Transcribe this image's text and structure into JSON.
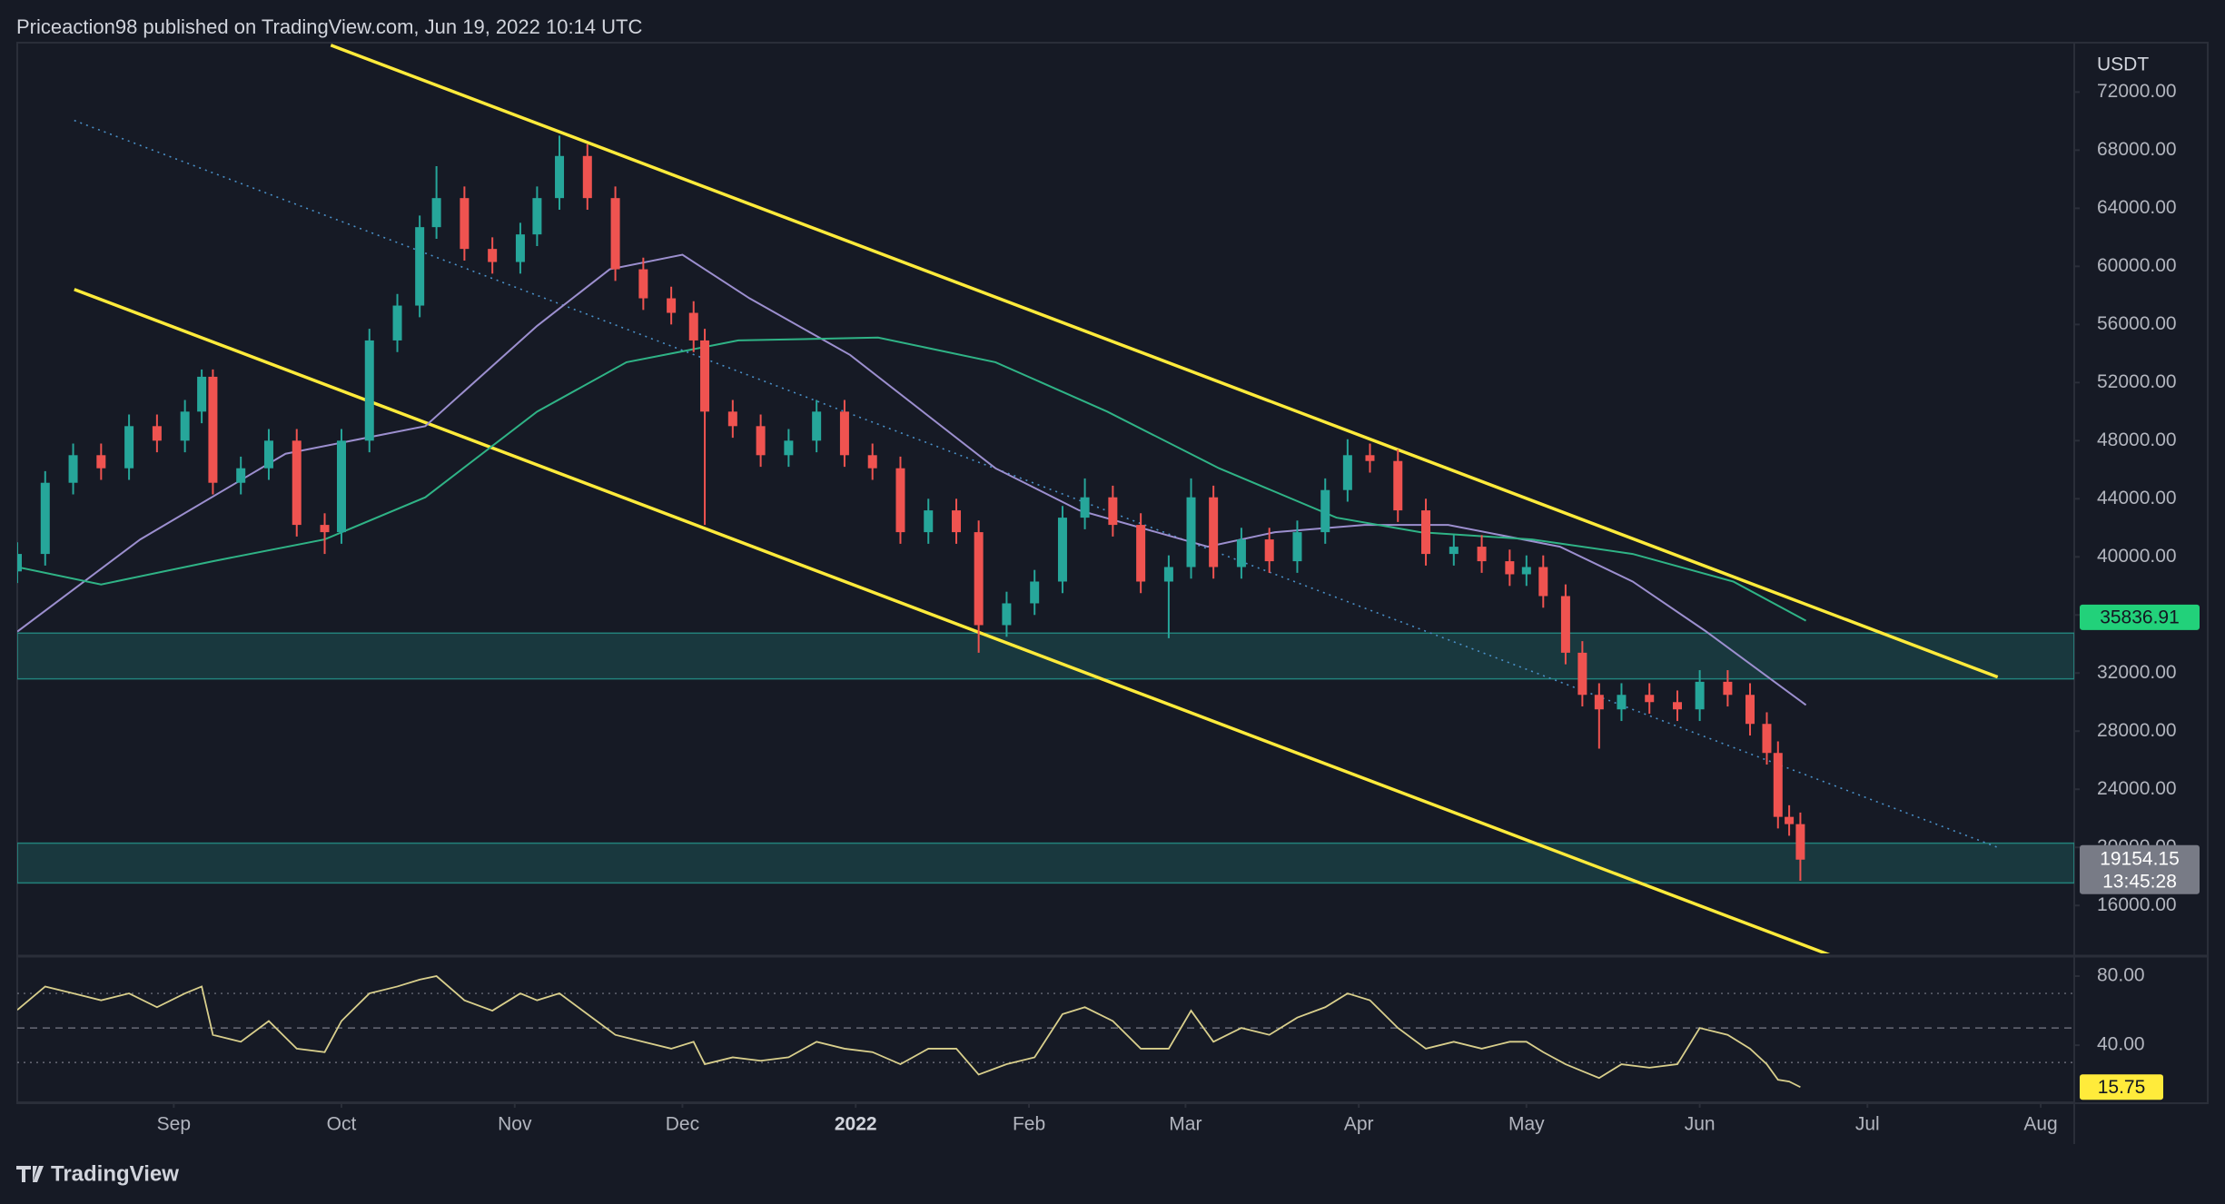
{
  "header": {
    "publisher": "Priceaction98 published on TradingView.com, Jun 19, 2022 10:14 UTC",
    "logo": "TradingView"
  },
  "chart_data": [
    {
      "type": "candlestick",
      "currency": "USDT",
      "up_color": "#26a69a",
      "down_color": "#ef5350",
      "x": [
        0,
        5,
        10,
        15,
        20,
        25,
        30,
        33,
        35,
        40,
        45,
        50,
        55,
        58,
        63,
        68,
        72,
        75,
        80,
        85,
        90,
        93,
        97,
        102,
        107,
        112,
        117,
        121,
        123,
        128,
        133,
        138,
        143,
        148,
        153,
        158,
        163,
        168,
        172,
        177,
        182,
        187,
        191,
        196,
        201,
        206,
        210,
        214,
        219,
        224,
        229,
        234,
        238,
        242,
        247,
        252,
        257,
        262,
        267,
        270,
        273,
        277,
        280,
        283,
        287,
        292,
        297,
        301,
        306,
        310,
        313,
        315,
        317,
        319
      ],
      "open": [
        39000,
        40200,
        45100,
        47000,
        46100,
        49000,
        48000,
        50000,
        52400,
        45100,
        46100,
        48000,
        42200,
        41700,
        48000,
        54900,
        57300,
        62700,
        64700,
        61200,
        60300,
        62200,
        64700,
        67600,
        64700,
        59800,
        57800,
        56800,
        54900,
        50000,
        49000,
        47000,
        48000,
        50000,
        47000,
        46100,
        41700,
        43200,
        41700,
        35300,
        36800,
        38300,
        42700,
        44100,
        42200,
        38300,
        39300,
        44100,
        39300,
        41200,
        39700,
        41700,
        44600,
        47000,
        46600,
        43200,
        40200,
        40700,
        39700,
        38800,
        39300,
        37300,
        33400,
        30500,
        29500,
        30500,
        30000,
        29500,
        31400,
        30500,
        28500,
        26500,
        22100,
        21600
      ],
      "high": [
        41000,
        45900,
        47800,
        47800,
        49800,
        49800,
        50800,
        52900,
        52900,
        46900,
        48800,
        48800,
        43000,
        48800,
        55700,
        58100,
        63500,
        66900,
        65500,
        62000,
        63000,
        65500,
        69000,
        68400,
        65500,
        60600,
        58600,
        57600,
        55700,
        50800,
        49800,
        48800,
        50800,
        50800,
        47800,
        46900,
        44000,
        44000,
        42500,
        37600,
        39100,
        43500,
        45400,
        44900,
        43000,
        40100,
        45400,
        44900,
        42000,
        42000,
        42500,
        45400,
        48100,
        47800,
        47400,
        44000,
        41500,
        41500,
        40500,
        40100,
        40100,
        38100,
        34200,
        31300,
        31300,
        31300,
        30800,
        32200,
        32200,
        31300,
        29300,
        27300,
        22900,
        22400
      ],
      "low": [
        38200,
        39400,
        44300,
        45300,
        45300,
        47200,
        47200,
        49200,
        44300,
        44300,
        45300,
        41400,
        40200,
        40900,
        47200,
        54100,
        56500,
        61900,
        60400,
        59500,
        59500,
        61400,
        63900,
        63900,
        59000,
        57000,
        56000,
        54100,
        42200,
        48200,
        46200,
        46200,
        47200,
        46200,
        45300,
        40900,
        40900,
        40900,
        33400,
        34500,
        36000,
        37500,
        41900,
        41400,
        37500,
        34400,
        38500,
        38500,
        38500,
        38900,
        38900,
        40900,
        43800,
        45800,
        42400,
        39400,
        39400,
        38900,
        38000,
        38000,
        36500,
        32600,
        29700,
        26800,
        28700,
        29200,
        28700,
        28700,
        29700,
        27700,
        25700,
        21300,
        20800,
        17700
      ],
      "close": [
        40200,
        45100,
        47000,
        46100,
        49000,
        48000,
        50000,
        52400,
        45100,
        46100,
        48000,
        42200,
        41700,
        48000,
        54900,
        57300,
        62700,
        64700,
        61200,
        60300,
        62200,
        64700,
        67600,
        64700,
        59800,
        57800,
        56800,
        54900,
        50000,
        49000,
        47000,
        48000,
        50000,
        47000,
        46100,
        41700,
        43200,
        41700,
        35300,
        36800,
        38300,
        42700,
        44100,
        42200,
        38300,
        39300,
        44100,
        39300,
        41200,
        39700,
        41700,
        44600,
        47000,
        46600,
        43200,
        40200,
        40700,
        39700,
        38800,
        39300,
        37300,
        33400,
        30500,
        29500,
        30500,
        30000,
        29500,
        31400,
        30500,
        28500,
        26500,
        22100,
        21600,
        19154.15
      ],
      "xlim": [
        0,
        368
      ],
      "ylim": [
        12700,
        75400
      ],
      "yticks": [
        {
          "value": 16000,
          "label": "16000.00"
        },
        {
          "value": 20000,
          "label": "20000.00"
        },
        {
          "value": 24000,
          "label": "24000.00"
        },
        {
          "value": 28000,
          "label": "28000.00"
        },
        {
          "value": 32000,
          "label": "32000.00"
        },
        {
          "value": 36000,
          "label": "36000.00"
        },
        {
          "value": 40000,
          "label": "40000.00"
        },
        {
          "value": 44000,
          "label": "44000.00"
        },
        {
          "value": 48000,
          "label": "48000.00"
        },
        {
          "value": 52000,
          "label": "52000.00"
        },
        {
          "value": 56000,
          "label": "56000.00"
        },
        {
          "value": 60000,
          "label": "60000.00"
        },
        {
          "value": 64000,
          "label": "64000.00"
        },
        {
          "value": 68000,
          "label": "68000.00"
        },
        {
          "value": 72000,
          "label": "72000.00"
        }
      ],
      "series": [
        {
          "color": "#9c8fcf",
          "x": [
            0,
            22,
            48,
            73,
            93,
            106,
            119,
            131,
            149,
            175,
            190,
            213,
            225,
            241,
            256,
            276,
            289,
            302,
            320
          ],
          "values": [
            34850,
            41200,
            47100,
            49000,
            55900,
            59800,
            60800,
            57800,
            53900,
            46100,
            43200,
            40700,
            41700,
            42200,
            42200,
            40700,
            38300,
            34900,
            29800
          ]
        },
        {
          "color": "#2fb386",
          "x": [
            0,
            15,
            35,
            55,
            73,
            93,
            109,
            129,
            154,
            175,
            195,
            215,
            236,
            251,
            271,
            289,
            307,
            320
          ],
          "values": [
            39300,
            38100,
            39700,
            41200,
            44100,
            50000,
            53400,
            54900,
            55100,
            53400,
            50000,
            46100,
            42700,
            41700,
            41200,
            40200,
            38300,
            35600
          ]
        }
      ],
      "trendlines": [
        {
          "color": "#ffeb3b",
          "style": "solid",
          "x": [
            56.1,
            354.3
          ],
          "values": [
            75226,
            31727
          ]
        },
        {
          "color": "#ffeb3b",
          "style": "solid",
          "x": [
            10.2,
            325.1
          ],
          "values": [
            58413,
            12470
          ]
        },
        {
          "color": "#4a90c8",
          "style": "dotted",
          "x": [
            10.2,
            354.3
          ],
          "values": [
            70045,
            20000
          ]
        }
      ],
      "zones": [
        {
          "from": 31600,
          "to": 34750,
          "color": "#26a69a"
        },
        {
          "from": 17550,
          "to": 20290,
          "color": "#26a69a"
        }
      ],
      "price_marks": [
        {
          "value": 35836.91,
          "label": "35836.91",
          "color": "#22d17a"
        }
      ],
      "last_price": {
        "value": 19154.15,
        "label": "19154.15",
        "countdown": "13:45:28",
        "color": "#787b86"
      }
    },
    {
      "type": "line",
      "color": "#d9cf8c",
      "x": [
        0,
        5,
        10,
        15,
        20,
        25,
        30,
        33,
        35,
        40,
        45,
        50,
        55,
        58,
        63,
        68,
        72,
        75,
        80,
        85,
        90,
        93,
        97,
        102,
        107,
        112,
        117,
        121,
        123,
        128,
        133,
        138,
        143,
        148,
        153,
        158,
        163,
        168,
        172,
        177,
        182,
        187,
        191,
        196,
        201,
        206,
        210,
        214,
        219,
        224,
        229,
        234,
        238,
        242,
        247,
        252,
        257,
        262,
        267,
        270,
        273,
        277,
        280,
        283,
        287,
        292,
        297,
        301,
        306,
        310,
        313,
        315,
        317,
        319
      ],
      "values": [
        60.4,
        74,
        70,
        66,
        70,
        62,
        70,
        74,
        46,
        42,
        54,
        38,
        36,
        54,
        70,
        74,
        78,
        80,
        66,
        60,
        70,
        66,
        70,
        58,
        46,
        42,
        38,
        42,
        29,
        33,
        31,
        33,
        42,
        38,
        36,
        29,
        38,
        38,
        23,
        29,
        33,
        58,
        62,
        54,
        38,
        38,
        60,
        42,
        50,
        46,
        56,
        62,
        70,
        66,
        50,
        38,
        42,
        38,
        42,
        42,
        36,
        29,
        25,
        21,
        29,
        27,
        29,
        50,
        46,
        38,
        29,
        20,
        19,
        15.75
      ],
      "value_labels": {
        "73": "15.75"
      },
      "xlim": [
        0,
        368
      ],
      "ylim": [
        8,
        90
      ],
      "yticks": [
        {
          "value": 80,
          "label": "80.00"
        },
        {
          "value": 40,
          "label": "40.00"
        }
      ],
      "levels": [
        {
          "value": 70,
          "style": "dotted"
        },
        {
          "value": 50,
          "style": "dashed"
        },
        {
          "value": 30,
          "style": "dotted"
        }
      ],
      "xticks": [
        {
          "value": 28,
          "label": "Sep"
        },
        {
          "value": 58,
          "label": "Oct"
        },
        {
          "value": 89,
          "label": "Nov"
        },
        {
          "value": 119,
          "label": "Dec"
        },
        {
          "value": 150,
          "label": "2022"
        },
        {
          "value": 181,
          "label": "Feb"
        },
        {
          "value": 209,
          "label": "Mar"
        },
        {
          "value": 240,
          "label": "Apr"
        },
        {
          "value": 270,
          "label": "May"
        },
        {
          "value": 301,
          "label": "Jun"
        },
        {
          "value": 331,
          "label": "Jul"
        },
        {
          "value": 362,
          "label": "Aug"
        }
      ]
    }
  ]
}
